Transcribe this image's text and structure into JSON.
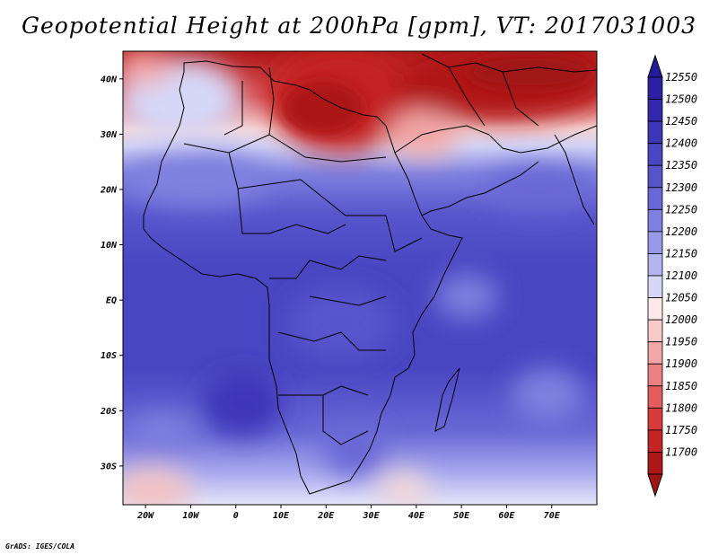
{
  "title": "Geopotential Height at 200hPa [gpm], VT: 2017031003",
  "credit": "GrADS: IGES/COLA",
  "map": {
    "lon_range": [
      -25,
      80
    ],
    "lat_range": [
      -37,
      45
    ],
    "lat_ticks": [
      {
        "lat": 40,
        "label": "40N"
      },
      {
        "lat": 30,
        "label": "30N"
      },
      {
        "lat": 20,
        "label": "20N"
      },
      {
        "lat": 10,
        "label": "10N"
      },
      {
        "lat": 0,
        "label": "EQ"
      },
      {
        "lat": -10,
        "label": "10S"
      },
      {
        "lat": -20,
        "label": "20S"
      },
      {
        "lat": -30,
        "label": "30S"
      }
    ],
    "lon_ticks": [
      {
        "lon": -20,
        "label": "20W"
      },
      {
        "lon": -10,
        "label": "10W"
      },
      {
        "lon": 0,
        "label": "0"
      },
      {
        "lon": 10,
        "label": "10E"
      },
      {
        "lon": 20,
        "label": "20E"
      },
      {
        "lon": 30,
        "label": "30E"
      },
      {
        "lon": 40,
        "label": "40E"
      },
      {
        "lon": 50,
        "label": "50E"
      },
      {
        "lon": 60,
        "label": "60E"
      },
      {
        "lon": 70,
        "label": "70E"
      }
    ]
  },
  "colorbar": {
    "levels": [
      12550,
      12500,
      12450,
      12400,
      12350,
      12300,
      12250,
      12200,
      12150,
      12100,
      12050,
      12000,
      11950,
      11900,
      11850,
      11800,
      11750,
      11700
    ],
    "top_color": "#251a9c",
    "bottom_color": "#a11414",
    "colors": [
      "#2c1fa3",
      "#3328ad",
      "#3d36b8",
      "#4a45c2",
      "#5855cc",
      "#6a68d6",
      "#7f80df",
      "#9899e8",
      "#b4b5f0",
      "#d6d7f7",
      "#fbe9e9",
      "#f8c9c9",
      "#f3a6a6",
      "#ec8080",
      "#e35d5d",
      "#d63c3c",
      "#c32424",
      "#ad1717"
    ]
  }
}
